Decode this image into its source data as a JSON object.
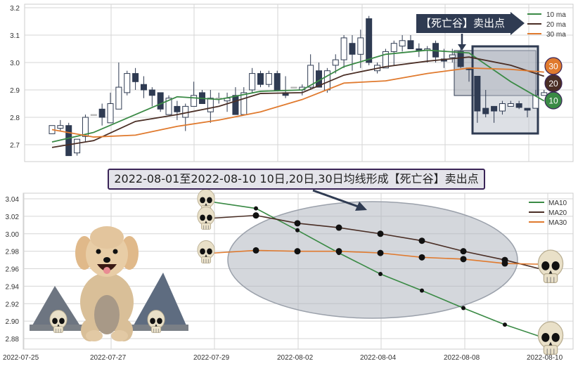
{
  "colors": {
    "ma10": "#3a8a45",
    "ma20": "#4a2e25",
    "ma30": "#e07a2e",
    "candle": "#2f3b52",
    "annotation": "#2f3b52"
  },
  "top_callout": "【死亡谷】卖出点",
  "title_banner": "2022-08-01至2022-08-10 10日,20日,30日均线形成【死亡谷】卖出点",
  "badges": [
    "30",
    "20",
    "10"
  ],
  "chart_data": [
    {
      "type": "candlestick",
      "ylim": [
        2.67,
        3.21
      ],
      "yticks": [
        "3.2",
        "3.1",
        "3.0",
        "2.9",
        "2.8",
        "2.7"
      ],
      "grid": true,
      "legend": {
        "placement": "top-right",
        "entries": [
          "10 ma",
          "20 ma",
          "30 ma"
        ]
      },
      "ohlc": [
        [
          2.74,
          2.77,
          2.74,
          2.77
        ],
        [
          2.76,
          2.79,
          2.75,
          2.77
        ],
        [
          2.77,
          2.78,
          2.66,
          2.66
        ],
        [
          2.67,
          2.72,
          2.66,
          2.72
        ],
        [
          2.73,
          2.81,
          2.71,
          2.8
        ],
        [
          2.81,
          2.81,
          2.81,
          2.81
        ],
        [
          2.83,
          2.85,
          2.77,
          2.8
        ],
        [
          2.78,
          2.89,
          2.78,
          2.85
        ],
        [
          2.83,
          3.0,
          2.83,
          2.91
        ],
        [
          2.89,
          2.97,
          2.88,
          2.96
        ],
        [
          2.96,
          2.98,
          2.9,
          2.93
        ],
        [
          2.92,
          2.95,
          2.87,
          2.9
        ],
        [
          2.9,
          2.91,
          2.84,
          2.88
        ],
        [
          2.89,
          2.89,
          2.82,
          2.83
        ],
        [
          2.81,
          2.88,
          2.81,
          2.87
        ],
        [
          2.84,
          2.86,
          2.79,
          2.82
        ],
        [
          2.8,
          2.85,
          2.75,
          2.84
        ],
        [
          2.84,
          2.93,
          2.84,
          2.88
        ],
        [
          2.89,
          2.9,
          2.85,
          2.85
        ],
        [
          2.82,
          2.9,
          2.78,
          2.87
        ],
        [
          2.87,
          2.89,
          2.85,
          2.87
        ],
        [
          2.86,
          2.89,
          2.82,
          2.87
        ],
        [
          2.88,
          2.91,
          2.81,
          2.81
        ],
        [
          2.81,
          2.91,
          2.81,
          2.89
        ],
        [
          2.9,
          2.98,
          2.89,
          2.96
        ],
        [
          2.96,
          2.97,
          2.91,
          2.92
        ],
        [
          2.92,
          2.97,
          2.91,
          2.96
        ],
        [
          2.96,
          2.97,
          2.9,
          2.9
        ],
        [
          2.89,
          2.95,
          2.87,
          2.88
        ],
        [
          2.91,
          2.91,
          2.91,
          2.91
        ],
        [
          2.9,
          2.92,
          2.88,
          2.91
        ],
        [
          2.91,
          3.03,
          2.9,
          2.99
        ],
        [
          2.97,
          3.0,
          2.91,
          2.91
        ],
        [
          2.9,
          2.98,
          2.89,
          2.97
        ],
        [
          2.99,
          3.03,
          2.96,
          3.01
        ],
        [
          3.01,
          3.1,
          2.98,
          3.09
        ],
        [
          3.07,
          3.1,
          2.97,
          3.03
        ],
        [
          3.03,
          3.12,
          2.98,
          3.09
        ],
        [
          3.16,
          3.17,
          2.99,
          3.0
        ],
        [
          2.97,
          3.0,
          2.96,
          2.99
        ],
        [
          2.98,
          3.05,
          2.98,
          3.04
        ],
        [
          3.04,
          3.08,
          2.99,
          3.07
        ],
        [
          3.06,
          3.1,
          3.04,
          3.08
        ],
        [
          3.08,
          3.1,
          3.05,
          3.05
        ],
        [
          3.05,
          3.07,
          3.02,
          3.045
        ],
        [
          3.045,
          3.06,
          3.0,
          3.05
        ],
        [
          3.07,
          3.08,
          3.0,
          3.02
        ],
        [
          3.013,
          3.05,
          2.98,
          3.005
        ],
        [
          3.018,
          3.05,
          3.0,
          3.028
        ],
        [
          3.04,
          3.06,
          2.98,
          2.985
        ],
        [
          2.98,
          2.98,
          2.93,
          2.974
        ],
        [
          2.95,
          2.95,
          2.78,
          2.823
        ],
        [
          2.833,
          2.9,
          2.8,
          2.813
        ],
        [
          2.84,
          2.84,
          2.78,
          2.823
        ],
        [
          2.823,
          2.86,
          2.81,
          2.85
        ],
        [
          2.84,
          2.86,
          2.84,
          2.85
        ],
        [
          2.85,
          2.86,
          2.83,
          2.836
        ],
        [
          2.833,
          2.833,
          2.8,
          2.826
        ],
        [
          2.833,
          2.9,
          2.833,
          2.88
        ],
        [
          2.88,
          2.9,
          2.88,
          2.89
        ]
      ],
      "ma_sample_index": [
        0,
        5,
        10,
        15,
        20,
        25,
        30,
        35,
        40,
        45,
        50,
        55,
        59
      ],
      "series": [
        {
          "name": "10 ma",
          "values": [
            2.71,
            2.745,
            2.81,
            2.875,
            2.865,
            2.895,
            2.9,
            2.985,
            3.03,
            3.045,
            3.035,
            2.93,
            2.86
          ]
        },
        {
          "name": "20 ma",
          "values": [
            2.69,
            2.715,
            2.785,
            2.81,
            2.84,
            2.887,
            2.89,
            2.954,
            2.985,
            3.005,
            3.02,
            2.99,
            2.95
          ]
        },
        {
          "name": "30 ma",
          "values": [
            2.755,
            2.728,
            2.735,
            2.767,
            2.79,
            2.82,
            2.865,
            2.925,
            2.933,
            2.96,
            2.98,
            2.975,
            2.965
          ]
        }
      ]
    },
    {
      "type": "line",
      "x": [
        "2022-07-29",
        "2022-08-01",
        "2022-08-02",
        "2022-08-03",
        "2022-08-04",
        "2022-08-05",
        "2022-08-08",
        "2022-08-09",
        "2022-08-10"
      ],
      "xticks": [
        "2022-07-25",
        "2022-07-27",
        "2022-07-29",
        "2022-08-02",
        "2022-08-04",
        "2022-08-08",
        "2022-08-10"
      ],
      "ylim": [
        2.867,
        3.047
      ],
      "yticks": [
        "3.04",
        "3.02",
        "3.00",
        "2.98",
        "2.96",
        "2.94",
        "2.92",
        "2.90",
        "2.88"
      ],
      "grid": true,
      "legend": {
        "placement": "top-right"
      },
      "series": [
        {
          "name": "MA10",
          "values": [
            3.036,
            3.029,
            3.004,
            2.978,
            2.954,
            2.935,
            2.915,
            2.896,
            2.88
          ]
        },
        {
          "name": "MA20",
          "values": [
            3.018,
            3.021,
            3.012,
            3.007,
            3.0,
            2.992,
            2.98,
            2.97,
            2.958
          ]
        },
        {
          "name": "MA30",
          "values": [
            2.978,
            2.981,
            2.98,
            2.98,
            2.978,
            2.973,
            2.971,
            2.966,
            2.965
          ]
        }
      ]
    }
  ]
}
